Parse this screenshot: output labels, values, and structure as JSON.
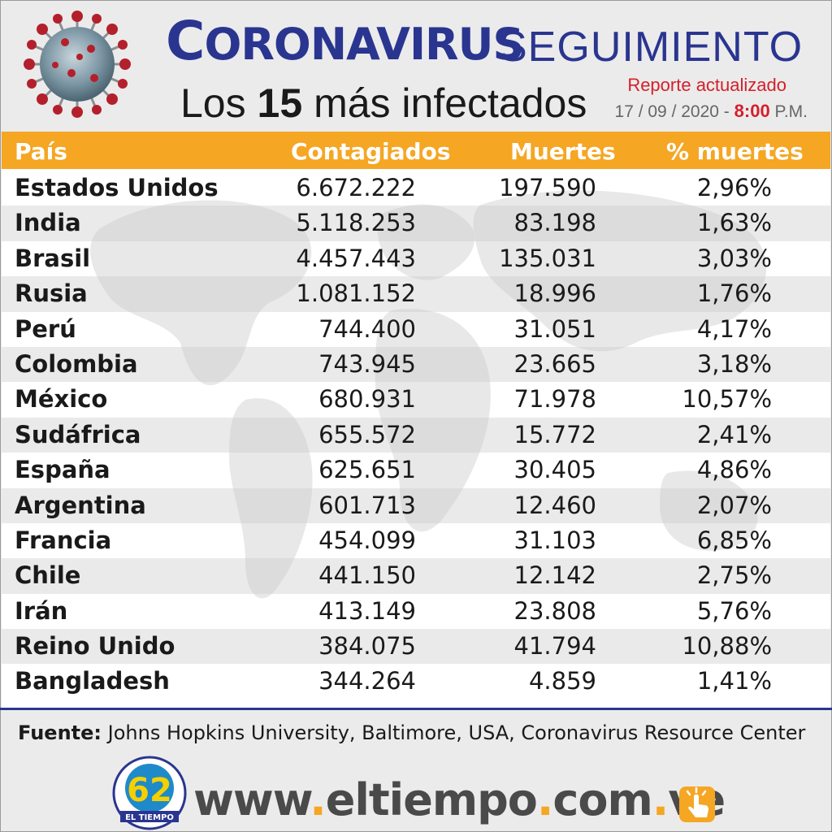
{
  "header": {
    "title_initial": "C",
    "title_rest": "ORONAVIRUS",
    "title_secondary": "SEGUIMIENTO",
    "subtitle_pre": "Los",
    "subtitle_num": "15",
    "subtitle_post": "más infectados",
    "report_label": "Reporte actualizado",
    "report_date": "17 / 09 / 2020 -",
    "report_time": "8:00",
    "report_suffix": "P.M."
  },
  "colors": {
    "brand_blue": "#2a3590",
    "accent_orange": "#f5a623",
    "alert_red": "#d4202b"
  },
  "icons": {
    "virus": "coronavirus-illustration-icon",
    "map": "world-map-watermark",
    "logo": "el-tiempo-62-logo",
    "click": "hand-pointer-icon"
  },
  "table": {
    "headers": [
      "País",
      "Contagiados",
      "Muertes",
      "% muertes"
    ],
    "rows": [
      {
        "country": "Estados Unidos",
        "cases": "6.672.222",
        "deaths": "197.590",
        "pct": "2,96%"
      },
      {
        "country": "India",
        "cases": "5.118.253",
        "deaths": "83.198",
        "pct": "1,63%"
      },
      {
        "country": "Brasil",
        "cases": "4.457.443",
        "deaths": "135.031",
        "pct": "3,03%"
      },
      {
        "country": "Rusia",
        "cases": "1.081.152",
        "deaths": "18.996",
        "pct": "1,76%"
      },
      {
        "country": "Perú",
        "cases": "744.400",
        "deaths": "31.051",
        "pct": "4,17%"
      },
      {
        "country": "Colombia",
        "cases": "743.945",
        "deaths": "23.665",
        "pct": "3,18%"
      },
      {
        "country": "México",
        "cases": "680.931",
        "deaths": "71.978",
        "pct": "10,57%"
      },
      {
        "country": "Sudáfrica",
        "cases": "655.572",
        "deaths": "15.772",
        "pct": "2,41%"
      },
      {
        "country": "España",
        "cases": "625.651",
        "deaths": "30.405",
        "pct": "4,86%"
      },
      {
        "country": "Argentina",
        "cases": "601.713",
        "deaths": "12.460",
        "pct": "2,07%"
      },
      {
        "country": "Francia",
        "cases": "454.099",
        "deaths": "31.103",
        "pct": "6,85%"
      },
      {
        "country": "Chile",
        "cases": "441.150",
        "deaths": "12.142",
        "pct": "2,75%"
      },
      {
        "country": "Irán",
        "cases": "413.149",
        "deaths": "23.808",
        "pct": "5,76%"
      },
      {
        "country": "Reino Unido",
        "cases": "384.075",
        "deaths": "41.794",
        "pct": "10,88%"
      },
      {
        "country": "Bangladesh",
        "cases": "344.264",
        "deaths": "4.859",
        "pct": "1,41%"
      }
    ]
  },
  "footer": {
    "source_label": "Fuente:",
    "source_text": "Johns Hopkins University, Baltimore, USA, Coronavirus Resource Center",
    "logo_text": "EL TIEMPO",
    "logo_number": "62",
    "site_parts": [
      "www",
      "eltiempo",
      "com",
      "ve"
    ]
  }
}
